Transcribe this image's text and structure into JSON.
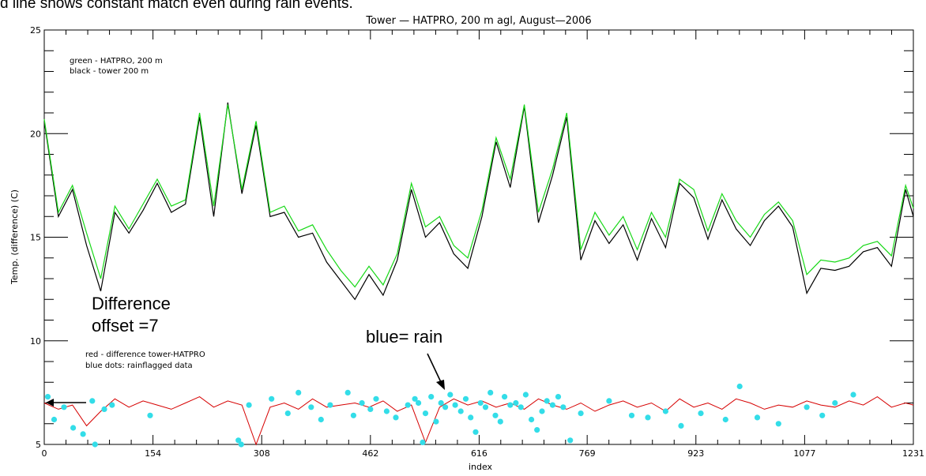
{
  "page": {
    "caption_top": "d line shows constant match even during rain events."
  },
  "chart_data": {
    "type": "line",
    "title": "Tower — HATPRO, 200 m agl, August—2006",
    "xlabel": "index",
    "ylabel": "Temp. (difference) (C)",
    "xlim": [
      0,
      1231
    ],
    "ylim": [
      5,
      25
    ],
    "x_ticks": [
      0,
      154,
      308,
      462,
      616,
      769,
      923,
      1077,
      1231
    ],
    "y_ticks": [
      5,
      10,
      15,
      20,
      25
    ],
    "grid": false,
    "legend_upper": [
      "green - HATPRO, 200 m",
      "black - tower 200 m"
    ],
    "legend_lower": [
      "red - difference tower-HATPRO",
      "blue dots: rainflagged data"
    ],
    "annotations": {
      "difference_line1": "Difference",
      "difference_line2": "offset =7",
      "rain_label": "blue= rain"
    },
    "colors": {
      "hatpro": "#18d818",
      "tower": "#000000",
      "difference": "#d60000",
      "rain": "#33dde8"
    },
    "series": [
      {
        "name": "green - HATPRO, 200 m",
        "x": [
          0,
          20,
          40,
          60,
          80,
          100,
          120,
          140,
          160,
          180,
          200,
          220,
          240,
          260,
          280,
          300,
          320,
          340,
          360,
          380,
          400,
          420,
          440,
          460,
          480,
          500,
          520,
          540,
          560,
          580,
          600,
          620,
          640,
          660,
          680,
          700,
          720,
          740,
          760,
          780,
          800,
          820,
          840,
          860,
          880,
          900,
          920,
          940,
          960,
          980,
          1000,
          1020,
          1040,
          1060,
          1080,
          1100,
          1120,
          1140,
          1160,
          1180,
          1200,
          1220,
          1231
        ],
        "values": [
          20.7,
          16.2,
          17.5,
          15.2,
          13.0,
          16.5,
          15.4,
          16.6,
          17.8,
          16.5,
          16.8,
          21.0,
          16.5,
          21.4,
          17.3,
          20.6,
          16.2,
          16.5,
          15.3,
          15.6,
          14.4,
          13.4,
          12.6,
          13.6,
          12.7,
          14.2,
          17.6,
          15.5,
          16.0,
          14.6,
          14.0,
          16.3,
          19.8,
          17.8,
          21.4,
          16.2,
          18.3,
          21.0,
          14.4,
          16.2,
          15.1,
          16.0,
          14.4,
          16.2,
          15.0,
          17.8,
          17.3,
          15.3,
          17.1,
          15.8,
          15.0,
          16.1,
          16.7,
          15.8,
          13.2,
          13.9,
          13.8,
          14.0,
          14.6,
          14.8,
          14.1,
          17.5,
          16.4
        ]
      },
      {
        "name": "black - tower 200 m",
        "x": [
          0,
          20,
          40,
          60,
          80,
          100,
          120,
          140,
          160,
          180,
          200,
          220,
          240,
          260,
          280,
          300,
          320,
          340,
          360,
          380,
          400,
          420,
          440,
          460,
          480,
          500,
          520,
          540,
          560,
          580,
          600,
          620,
          640,
          660,
          680,
          700,
          720,
          740,
          760,
          780,
          800,
          820,
          840,
          860,
          880,
          900,
          920,
          940,
          960,
          980,
          1000,
          1020,
          1040,
          1060,
          1080,
          1100,
          1120,
          1140,
          1160,
          1180,
          1200,
          1220,
          1231
        ],
        "values": [
          20.6,
          16.0,
          17.3,
          14.6,
          12.4,
          16.2,
          15.2,
          16.3,
          17.6,
          16.2,
          16.6,
          20.8,
          16.0,
          21.5,
          17.1,
          20.4,
          16.0,
          16.2,
          15.0,
          15.2,
          13.8,
          12.9,
          12.0,
          13.2,
          12.2,
          13.9,
          17.3,
          15.0,
          15.7,
          14.2,
          13.5,
          16.0,
          19.6,
          17.4,
          21.3,
          15.7,
          18.0,
          20.8,
          13.9,
          15.8,
          14.7,
          15.6,
          13.9,
          15.9,
          14.5,
          17.6,
          16.9,
          14.9,
          16.8,
          15.4,
          14.6,
          15.8,
          16.5,
          15.5,
          12.3,
          13.5,
          13.4,
          13.6,
          14.3,
          14.5,
          13.6,
          17.3,
          16.0
        ]
      },
      {
        "name": "red - difference tower-HATPRO",
        "x": [
          0,
          20,
          40,
          60,
          80,
          100,
          120,
          140,
          160,
          180,
          200,
          220,
          240,
          260,
          280,
          300,
          320,
          340,
          360,
          380,
          400,
          420,
          440,
          460,
          480,
          500,
          520,
          540,
          560,
          580,
          600,
          620,
          640,
          660,
          680,
          700,
          720,
          740,
          760,
          780,
          800,
          820,
          840,
          860,
          880,
          900,
          920,
          940,
          960,
          980,
          1000,
          1020,
          1040,
          1060,
          1080,
          1100,
          1120,
          1140,
          1160,
          1180,
          1200,
          1220,
          1231
        ],
        "values": [
          7.0,
          6.7,
          6.9,
          5.9,
          6.6,
          7.2,
          6.8,
          7.1,
          6.9,
          6.7,
          7.0,
          7.3,
          6.8,
          7.1,
          6.9,
          5.0,
          6.8,
          7.0,
          6.7,
          7.2,
          6.8,
          6.9,
          7.0,
          6.8,
          7.1,
          6.6,
          6.9,
          5.1,
          6.8,
          7.2,
          6.9,
          7.1,
          6.8,
          7.0,
          6.7,
          7.2,
          6.9,
          6.7,
          7.0,
          6.6,
          6.9,
          7.1,
          6.8,
          7.0,
          6.6,
          7.2,
          6.8,
          7.0,
          6.7,
          7.2,
          7.0,
          6.7,
          6.9,
          6.8,
          7.1,
          6.9,
          6.8,
          7.1,
          6.9,
          7.3,
          6.8,
          7.0,
          6.9
        ]
      },
      {
        "name": "blue dots: rainflagged data",
        "x": [
          5,
          14,
          28,
          41,
          55,
          68,
          72,
          85,
          96,
          150,
          275,
          279,
          290,
          322,
          345,
          360,
          378,
          392,
          405,
          430,
          438,
          450,
          462,
          470,
          485,
          498,
          515,
          525,
          530,
          536,
          540,
          548,
          555,
          562,
          568,
          575,
          582,
          590,
          597,
          604,
          611,
          618,
          625,
          632,
          639,
          646,
          652,
          660,
          668,
          675,
          682,
          690,
          698,
          705,
          712,
          720,
          728,
          735,
          745,
          760,
          800,
          832,
          855,
          880,
          902,
          930,
          965,
          985,
          1010,
          1040,
          1080,
          1102,
          1120,
          1146
        ],
        "values": [
          7.3,
          6.2,
          6.8,
          5.8,
          5.5,
          7.1,
          5.0,
          6.7,
          6.9,
          6.4,
          5.2,
          5.0,
          6.9,
          7.2,
          6.5,
          7.5,
          6.8,
          6.2,
          6.9,
          7.5,
          6.4,
          7.0,
          6.7,
          7.2,
          6.6,
          6.3,
          6.9,
          7.2,
          7.0,
          5.1,
          6.5,
          7.3,
          6.1,
          7.0,
          6.8,
          7.4,
          6.9,
          6.6,
          7.2,
          6.3,
          5.6,
          7.0,
          6.8,
          7.5,
          6.4,
          6.1,
          7.3,
          6.9,
          7.0,
          6.8,
          7.4,
          6.2,
          5.7,
          6.6,
          7.1,
          6.9,
          7.3,
          6.8,
          5.2,
          6.5,
          7.1,
          6.4,
          6.3,
          6.6,
          5.9,
          6.5,
          6.2,
          7.8,
          6.3,
          6.0,
          6.8,
          6.4,
          7.0,
          7.4
        ]
      }
    ]
  }
}
